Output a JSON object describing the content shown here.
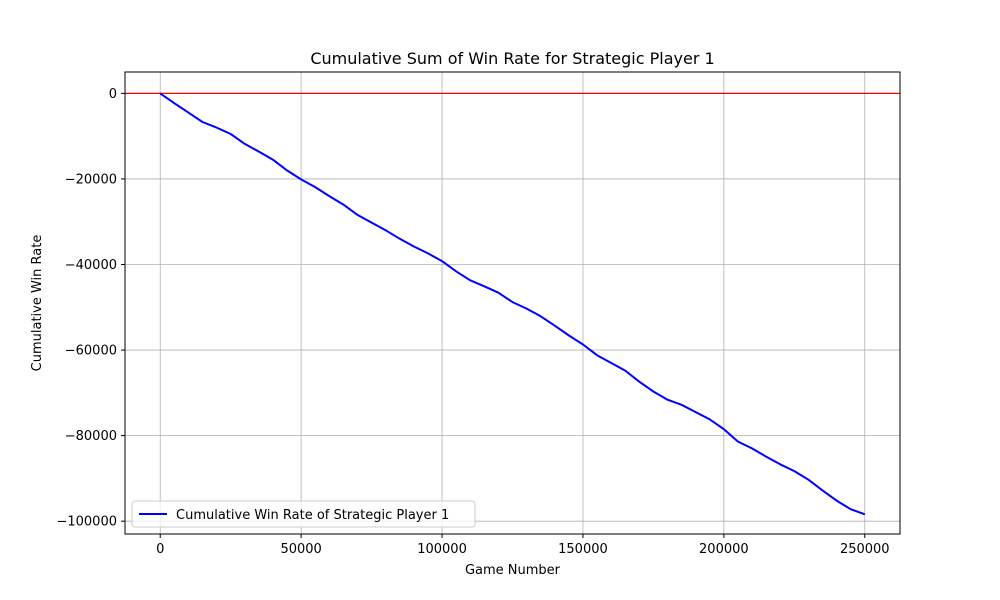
{
  "chart_data": {
    "type": "line",
    "title": "Cumulative Sum of Win Rate for Strategic Player 1",
    "xlabel": "Game Number",
    "ylabel": "Cumulative Win Rate",
    "xlim": [
      -12500,
      262500
    ],
    "ylim": [
      -103000,
      5000
    ],
    "xticks": [
      0,
      50000,
      100000,
      150000,
      200000,
      250000
    ],
    "xtick_labels": [
      "0",
      "50000",
      "100000",
      "150000",
      "200000",
      "250000"
    ],
    "yticks": [
      0,
      -20000,
      -40000,
      -60000,
      -80000,
      -100000
    ],
    "ytick_labels": [
      "0",
      "−20000",
      "−40000",
      "−60000",
      "−80000",
      "−100000"
    ],
    "grid": true,
    "legend_position": "lower-left",
    "reference_line": {
      "y": 0,
      "color": "#ff0000"
    },
    "series": [
      {
        "name": "Cumulative Win Rate of Strategic Player 1",
        "color": "#0000ff",
        "x": [
          0,
          5000,
          10000,
          15000,
          20000,
          25000,
          30000,
          35000,
          40000,
          45000,
          50000,
          55000,
          60000,
          65000,
          70000,
          75000,
          80000,
          85000,
          90000,
          95000,
          100000,
          105000,
          110000,
          115000,
          120000,
          125000,
          130000,
          135000,
          140000,
          145000,
          150000,
          155000,
          160000,
          165000,
          170000,
          175000,
          180000,
          185000,
          190000,
          195000,
          200000,
          205000,
          210000,
          215000,
          220000,
          225000,
          230000,
          235000,
          240000,
          245000,
          250000
        ],
        "y": [
          0,
          -2300,
          -4500,
          -6700,
          -8000,
          -9500,
          -11800,
          -13600,
          -15500,
          -18000,
          -20100,
          -21900,
          -24000,
          -26000,
          -28400,
          -30200,
          -32000,
          -34000,
          -35800,
          -37400,
          -39200,
          -41600,
          -43700,
          -45100,
          -46600,
          -48800,
          -50300,
          -52100,
          -54300,
          -56600,
          -58700,
          -61200,
          -63000,
          -64800,
          -67400,
          -69700,
          -71600,
          -72800,
          -74500,
          -76200,
          -78500,
          -81400,
          -83000,
          -84900,
          -86700,
          -88300,
          -90300,
          -92800,
          -95200,
          -97200,
          -98400
        ]
      }
    ]
  }
}
